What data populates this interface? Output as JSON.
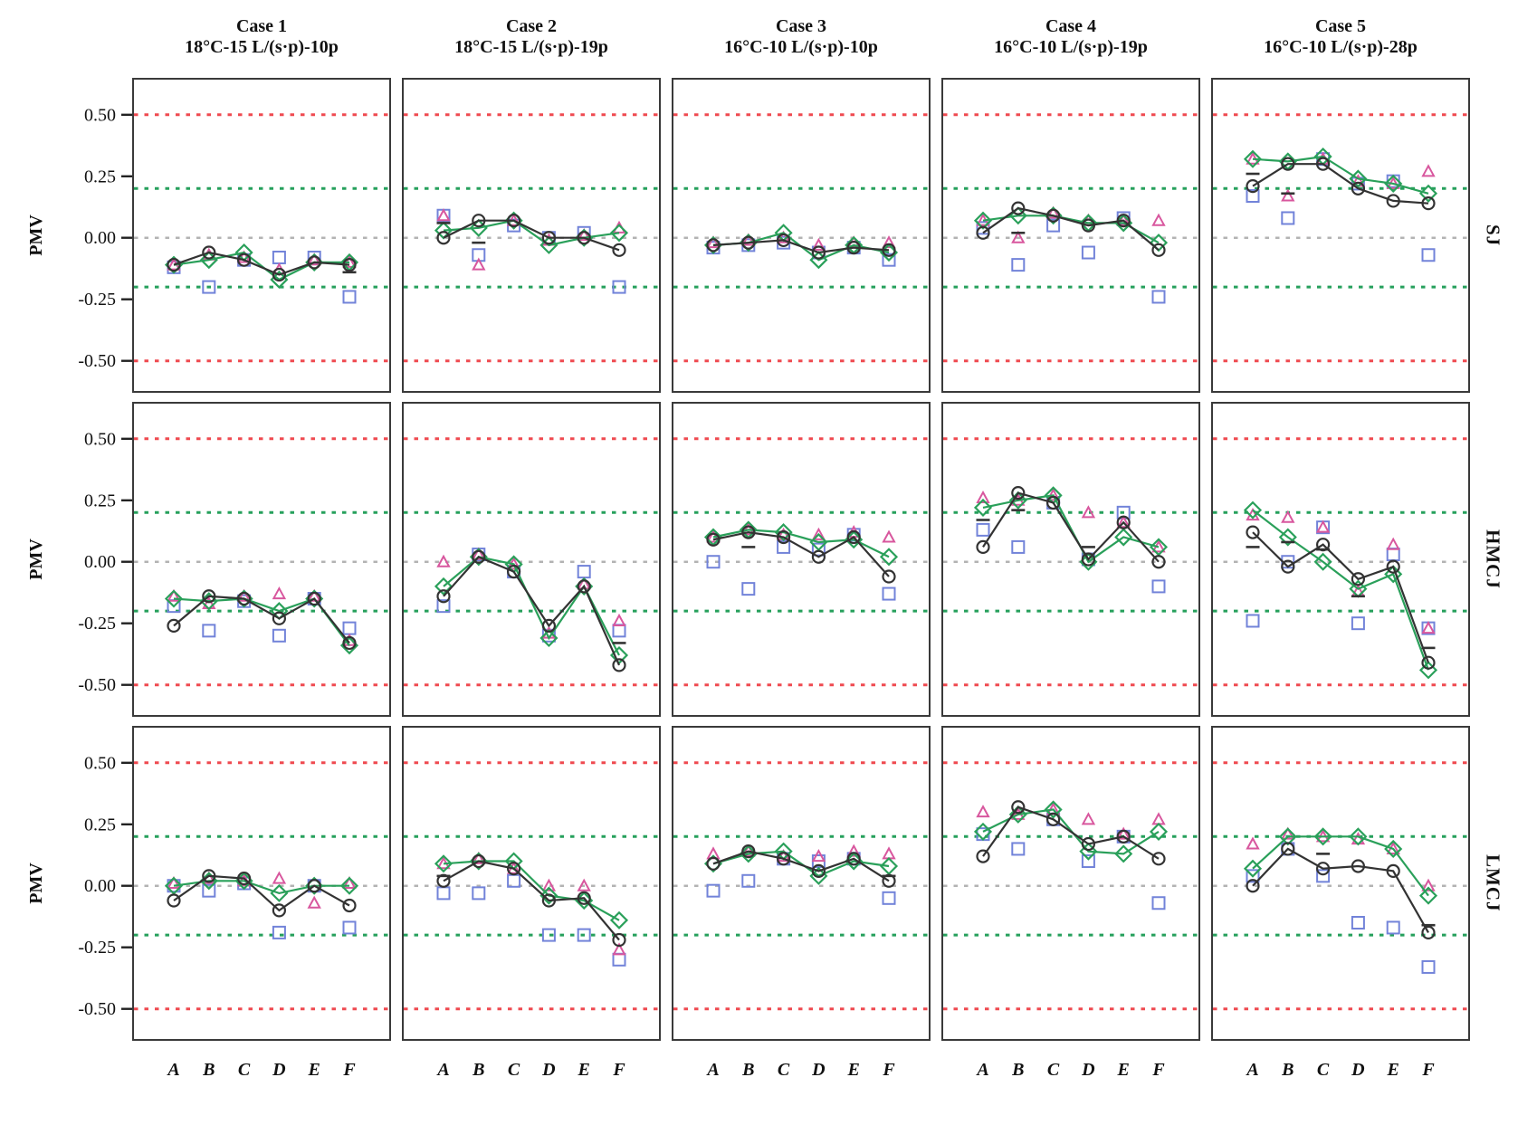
{
  "figure": {
    "background": "#ffffff",
    "ylabel": "PMV",
    "row_labels": [
      "SJ",
      "HMCJ",
      "LMCJ"
    ],
    "col_titles": [
      {
        "line1": "Case 1",
        "line2": "18°C-15 L/(s·p)-10p"
      },
      {
        "line1": "Case 2",
        "line2": "18°C-15 L/(s·p)-19p"
      },
      {
        "line1": "Case 3",
        "line2": "16°C-10 L/(s·p)-10p"
      },
      {
        "line1": "Case 4",
        "line2": "16°C-10 L/(s·p)-19p"
      },
      {
        "line1": "Case 5",
        "line2": "16°C-10 L/(s·p)-28p"
      }
    ]
  },
  "chart_data": {
    "type": "line",
    "grid": "small-multiples 3 rows x 5 columns",
    "x_categories": [
      "A",
      "B",
      "C",
      "D",
      "E",
      "F"
    ],
    "ylabel": "PMV",
    "ylim": [
      -0.63,
      0.65
    ],
    "yticks": [
      0.5,
      0.25,
      0,
      -0.25,
      -0.5
    ],
    "ytick_labels": [
      "0.50",
      "0.25",
      "0.00",
      "-0.25",
      "-0.50"
    ],
    "reference_lines": [
      {
        "y": 0.5,
        "color": "#ef4a50",
        "style": "dashed",
        "width": 3
      },
      {
        "y": 0.2,
        "color": "#26a05c",
        "style": "dashed",
        "width": 3
      },
      {
        "y": 0.0,
        "color": "#b3b3b3",
        "style": "dashed",
        "width": 2.5
      },
      {
        "y": -0.2,
        "color": "#26a05c",
        "style": "dashed",
        "width": 3
      },
      {
        "y": -0.5,
        "color": "#ef4a50",
        "style": "dashed",
        "width": 3
      }
    ],
    "series_styles": [
      {
        "id": "black_circle",
        "marker": "circle",
        "color": "#333333",
        "line": true
      },
      {
        "id": "green_diamond",
        "marker": "diamond",
        "color": "#2aa05a",
        "line": true
      },
      {
        "id": "pink_triangle",
        "marker": "triangle",
        "color": "#d8579e",
        "line": false
      },
      {
        "id": "blue_square",
        "marker": "square",
        "color": "#7283d9",
        "line": false
      },
      {
        "id": "black_dash",
        "marker": "dash",
        "color": "#333333",
        "line": false
      }
    ],
    "panels": [
      {
        "row": "SJ",
        "col": "Case 1",
        "series": {
          "black_circle": [
            -0.11,
            -0.06,
            -0.09,
            -0.15,
            -0.1,
            -0.11
          ],
          "green_diamond": [
            -0.11,
            -0.09,
            -0.06,
            -0.17,
            -0.1,
            -0.1
          ],
          "pink_triangle": [
            -0.11,
            -0.07,
            -0.08,
            -0.13,
            -0.09,
            -0.1
          ],
          "blue_square": [
            -0.12,
            -0.2,
            -0.09,
            -0.08,
            -0.08,
            -0.24
          ],
          "black_dash": [
            null,
            null,
            null,
            null,
            null,
            -0.14
          ]
        }
      },
      {
        "row": "SJ",
        "col": "Case 2",
        "series": {
          "black_circle": [
            0.0,
            0.07,
            0.07,
            0.0,
            0.0,
            -0.05
          ],
          "green_diamond": [
            0.03,
            0.04,
            0.07,
            -0.03,
            0.0,
            0.02
          ],
          "pink_triangle": [
            0.09,
            -0.11,
            0.07,
            -0.01,
            0.01,
            0.04
          ],
          "blue_square": [
            0.09,
            -0.07,
            0.05,
            0.0,
            0.02,
            -0.2
          ],
          "black_dash": [
            0.06,
            -0.02,
            null,
            null,
            null,
            null
          ]
        }
      },
      {
        "row": "SJ",
        "col": "Case 3",
        "series": {
          "black_circle": [
            -0.03,
            -0.02,
            -0.01,
            -0.06,
            -0.04,
            -0.05
          ],
          "green_diamond": [
            -0.03,
            -0.02,
            0.02,
            -0.09,
            -0.03,
            -0.06
          ],
          "pink_triangle": [
            -0.02,
            -0.01,
            0.0,
            -0.03,
            -0.02,
            -0.02
          ],
          "blue_square": [
            -0.04,
            -0.03,
            -0.02,
            -0.06,
            -0.04,
            -0.09
          ],
          "black_dash": [
            null,
            null,
            null,
            null,
            null,
            null
          ]
        }
      },
      {
        "row": "SJ",
        "col": "Case 4",
        "series": {
          "black_circle": [
            0.02,
            0.12,
            0.09,
            0.05,
            0.07,
            -0.05
          ],
          "green_diamond": [
            0.07,
            0.09,
            0.09,
            0.06,
            0.06,
            -0.02
          ],
          "pink_triangle": [
            0.07,
            0.0,
            0.1,
            0.07,
            0.07,
            0.07
          ],
          "blue_square": [
            0.04,
            -0.11,
            0.05,
            -0.06,
            0.08,
            -0.24
          ],
          "black_dash": [
            null,
            0.02,
            null,
            null,
            null,
            null
          ]
        }
      },
      {
        "row": "SJ",
        "col": "Case 5",
        "series": {
          "black_circle": [
            0.21,
            0.3,
            0.3,
            0.2,
            0.15,
            0.14
          ],
          "green_diamond": [
            0.32,
            0.31,
            0.33,
            0.24,
            0.22,
            0.18
          ],
          "pink_triangle": [
            0.32,
            0.17,
            0.32,
            0.23,
            0.22,
            0.27
          ],
          "blue_square": [
            0.17,
            0.08,
            0.32,
            0.22,
            0.23,
            -0.07
          ],
          "black_dash": [
            0.26,
            0.18,
            null,
            null,
            null,
            null
          ]
        }
      },
      {
        "row": "HMCJ",
        "col": "Case 1",
        "series": {
          "black_circle": [
            -0.26,
            -0.14,
            -0.15,
            -0.23,
            -0.15,
            -0.33
          ],
          "green_diamond": [
            -0.15,
            -0.16,
            -0.15,
            -0.2,
            -0.15,
            -0.34
          ],
          "pink_triangle": [
            -0.14,
            -0.17,
            -0.14,
            -0.13,
            -0.14,
            -0.32
          ],
          "blue_square": [
            -0.18,
            -0.28,
            -0.16,
            -0.3,
            -0.15,
            -0.27
          ],
          "black_dash": [
            null,
            null,
            null,
            null,
            null,
            null
          ]
        }
      },
      {
        "row": "HMCJ",
        "col": "Case 2",
        "series": {
          "black_circle": [
            -0.14,
            0.02,
            -0.04,
            -0.26,
            -0.1,
            -0.42
          ],
          "green_diamond": [
            -0.1,
            0.02,
            -0.01,
            -0.31,
            -0.1,
            -0.38
          ],
          "pink_triangle": [
            0.0,
            0.03,
            -0.01,
            -0.29,
            -0.09,
            -0.24
          ],
          "blue_square": [
            -0.18,
            0.03,
            -0.04,
            -0.3,
            -0.04,
            -0.28
          ],
          "black_dash": [
            null,
            null,
            null,
            null,
            null,
            -0.33
          ]
        }
      },
      {
        "row": "HMCJ",
        "col": "Case 3",
        "series": {
          "black_circle": [
            0.09,
            0.12,
            0.1,
            0.02,
            0.1,
            -0.06
          ],
          "green_diamond": [
            0.1,
            0.13,
            0.12,
            0.08,
            0.09,
            0.02
          ],
          "pink_triangle": [
            0.1,
            0.13,
            0.11,
            0.11,
            0.12,
            0.1
          ],
          "blue_square": [
            0.0,
            -0.11,
            0.06,
            0.05,
            0.11,
            -0.13
          ],
          "black_dash": [
            null,
            0.06,
            null,
            null,
            null,
            null
          ]
        }
      },
      {
        "row": "HMCJ",
        "col": "Case 4",
        "series": {
          "black_circle": [
            0.06,
            0.28,
            0.24,
            0.01,
            0.16,
            0.0
          ],
          "green_diamond": [
            0.22,
            0.25,
            0.27,
            0.0,
            0.1,
            0.06
          ],
          "pink_triangle": [
            0.26,
            0.25,
            0.27,
            0.2,
            0.16,
            0.06
          ],
          "blue_square": [
            0.13,
            0.06,
            0.24,
            0.01,
            0.2,
            -0.1
          ],
          "black_dash": [
            0.17,
            0.21,
            null,
            0.06,
            null,
            null
          ]
        }
      },
      {
        "row": "HMCJ",
        "col": "Case 5",
        "series": {
          "black_circle": [
            0.12,
            -0.02,
            0.07,
            -0.07,
            -0.02,
            -0.41
          ],
          "green_diamond": [
            0.21,
            0.1,
            0.0,
            -0.11,
            -0.05,
            -0.44
          ],
          "pink_triangle": [
            0.19,
            0.18,
            0.14,
            -0.12,
            0.07,
            -0.27
          ],
          "blue_square": [
            -0.24,
            0.0,
            0.14,
            -0.25,
            0.03,
            -0.27
          ],
          "black_dash": [
            0.06,
            0.08,
            0.05,
            -0.14,
            null,
            -0.35
          ]
        }
      },
      {
        "row": "LMCJ",
        "col": "Case 1",
        "series": {
          "black_circle": [
            -0.06,
            0.04,
            0.03,
            -0.1,
            0.0,
            -0.08
          ],
          "green_diamond": [
            0.0,
            0.02,
            0.02,
            -0.03,
            0.0,
            0.0
          ],
          "pink_triangle": [
            0.01,
            0.03,
            0.02,
            0.03,
            -0.07,
            0.01
          ],
          "blue_square": [
            0.0,
            -0.02,
            0.01,
            -0.19,
            0.0,
            -0.17
          ],
          "black_dash": [
            null,
            null,
            null,
            null,
            null,
            null
          ]
        }
      },
      {
        "row": "LMCJ",
        "col": "Case 2",
        "series": {
          "black_circle": [
            0.02,
            0.1,
            0.07,
            -0.06,
            -0.05,
            -0.22
          ],
          "green_diamond": [
            0.09,
            0.1,
            0.1,
            -0.04,
            -0.06,
            -0.14
          ],
          "pink_triangle": [
            0.09,
            0.11,
            0.07,
            0.0,
            0.0,
            -0.26
          ],
          "blue_square": [
            -0.03,
            -0.03,
            0.02,
            -0.2,
            -0.2,
            -0.3
          ],
          "black_dash": [
            0.04,
            null,
            null,
            null,
            null,
            null
          ]
        }
      },
      {
        "row": "LMCJ",
        "col": "Case 3",
        "series": {
          "black_circle": [
            0.09,
            0.14,
            0.11,
            0.06,
            0.11,
            0.02
          ],
          "green_diamond": [
            0.09,
            0.13,
            0.14,
            0.04,
            0.1,
            0.08
          ],
          "pink_triangle": [
            0.13,
            0.14,
            0.12,
            0.12,
            0.14,
            0.13
          ],
          "blue_square": [
            -0.02,
            0.02,
            0.11,
            0.1,
            0.11,
            -0.05
          ],
          "black_dash": [
            null,
            null,
            null,
            null,
            null,
            0.04
          ]
        }
      },
      {
        "row": "LMCJ",
        "col": "Case 4",
        "series": {
          "black_circle": [
            0.12,
            0.32,
            0.27,
            0.17,
            0.2,
            0.11
          ],
          "green_diamond": [
            0.22,
            0.29,
            0.31,
            0.14,
            0.13,
            0.22
          ],
          "pink_triangle": [
            0.3,
            0.29,
            0.31,
            0.27,
            0.21,
            0.27
          ],
          "blue_square": [
            0.21,
            0.15,
            0.27,
            0.1,
            0.2,
            -0.07
          ],
          "black_dash": [
            null,
            null,
            null,
            null,
            null,
            null
          ]
        }
      },
      {
        "row": "LMCJ",
        "col": "Case 5",
        "series": {
          "black_circle": [
            0.0,
            0.15,
            0.07,
            0.08,
            0.06,
            -0.19
          ],
          "green_diamond": [
            0.07,
            0.2,
            0.2,
            0.2,
            0.15,
            -0.04
          ],
          "pink_triangle": [
            0.17,
            0.21,
            0.2,
            0.19,
            0.15,
            0.0
          ],
          "blue_square": [
            0.04,
            0.15,
            0.04,
            -0.15,
            -0.17,
            -0.33
          ],
          "black_dash": [
            null,
            null,
            0.13,
            null,
            null,
            -0.16
          ]
        }
      }
    ]
  }
}
